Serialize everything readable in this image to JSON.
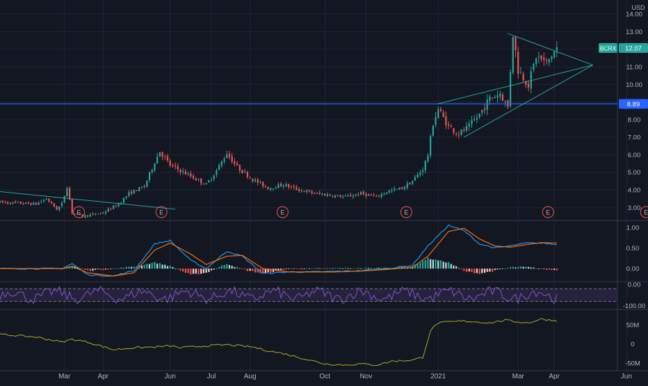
{
  "symbol": "BCRX",
  "last_price_label": "12.07",
  "hline_label": "8.89",
  "currency": "USD",
  "colors": {
    "background": "#131722",
    "grid": "#1f2433",
    "text": "#b2b5be",
    "up": "#26a69a",
    "down": "#ef5350",
    "trend": "#26a69a",
    "hline": "#2962ff",
    "macd": "#2196f3",
    "signal": "#ff6d00",
    "rsi": "#7e57c2",
    "vol_osc": "#9e9d24",
    "earnings": "#ef5350"
  },
  "earnings_marker": "E",
  "chart_data": [
    {
      "type": "candlestick",
      "panel": "price",
      "x_ticks": [
        "Mar",
        "Apr",
        "Jun",
        "Jul",
        "Aug",
        "Oct",
        "Nov",
        "2021",
        "Mar",
        "Apr",
        "Jun"
      ],
      "y_ticks": [
        "3.00",
        "4.00",
        "5.00",
        "6.00",
        "7.00",
        "8.00",
        "9.00",
        "10.00",
        "11.00",
        "12.00",
        "13.00",
        "14.00"
      ],
      "ylim": [
        2.3,
        14.8
      ],
      "price_path": [
        [
          0,
          3.3
        ],
        [
          14,
          3.2
        ],
        [
          18,
          3.5
        ],
        [
          22,
          2.9
        ],
        [
          24,
          3.2
        ],
        [
          26,
          4.2
        ],
        [
          28,
          2.7
        ],
        [
          32,
          2.5
        ],
        [
          40,
          2.7
        ],
        [
          46,
          3.2
        ],
        [
          50,
          3.8
        ],
        [
          56,
          4.2
        ],
        [
          60,
          5.6
        ],
        [
          62,
          6.2
        ],
        [
          66,
          5.4
        ],
        [
          70,
          5.1
        ],
        [
          75,
          4.7
        ],
        [
          80,
          4.3
        ],
        [
          84,
          5.1
        ],
        [
          88,
          6.1
        ],
        [
          92,
          5.3
        ],
        [
          98,
          4.6
        ],
        [
          104,
          4.1
        ],
        [
          110,
          4.3
        ],
        [
          116,
          4.0
        ],
        [
          122,
          3.8
        ],
        [
          128,
          3.7
        ],
        [
          134,
          3.6
        ],
        [
          140,
          3.8
        ],
        [
          146,
          3.6
        ],
        [
          150,
          3.9
        ],
        [
          156,
          4.1
        ],
        [
          160,
          4.5
        ],
        [
          164,
          5.2
        ],
        [
          166,
          6.0
        ],
        [
          168,
          7.8
        ],
        [
          170,
          8.6
        ],
        [
          174,
          7.6
        ],
        [
          178,
          7.2
        ],
        [
          182,
          7.6
        ],
        [
          186,
          8.3
        ],
        [
          190,
          9.2
        ],
        [
          194,
          9.5
        ],
        [
          197,
          8.7
        ],
        [
          199,
          12.9
        ],
        [
          201,
          10.8
        ],
        [
          205,
          10.0
        ],
        [
          208,
          11.6
        ],
        [
          212,
          11.2
        ],
        [
          216,
          12.07
        ]
      ],
      "series_count": 217,
      "lines": [
        {
          "name": "8.89",
          "type": "horizontal",
          "value": 8.89
        }
      ],
      "trendlines": [
        {
          "from": [
            0,
            3.9
          ],
          "to": [
            68,
            2.9
          ]
        },
        {
          "from": [
            170,
            8.9
          ],
          "to": [
            230,
            11.1
          ]
        },
        {
          "from": [
            180,
            7.0
          ],
          "to": [
            230,
            11.1
          ]
        },
        {
          "from": [
            197,
            12.9
          ],
          "to": [
            230,
            11.1
          ]
        }
      ],
      "earnings_events": [
        29,
        61,
        108,
        156,
        211,
        249
      ]
    },
    {
      "type": "line",
      "panel": "macd",
      "y_ticks": [
        "0.00",
        "0.50",
        "1.00"
      ],
      "ylim": [
        -0.3,
        1.15
      ],
      "macd_path": [
        [
          0,
          0.0
        ],
        [
          24,
          0.0
        ],
        [
          28,
          0.12
        ],
        [
          34,
          -0.15
        ],
        [
          44,
          -0.18
        ],
        [
          52,
          -0.05
        ],
        [
          60,
          0.6
        ],
        [
          66,
          0.68
        ],
        [
          74,
          0.2
        ],
        [
          80,
          0.0
        ],
        [
          88,
          0.42
        ],
        [
          94,
          0.3
        ],
        [
          102,
          -0.12
        ],
        [
          112,
          -0.08
        ],
        [
          122,
          -0.08
        ],
        [
          130,
          -0.07
        ],
        [
          140,
          -0.05
        ],
        [
          150,
          0.0
        ],
        [
          160,
          0.08
        ],
        [
          166,
          0.55
        ],
        [
          174,
          1.05
        ],
        [
          180,
          0.92
        ],
        [
          186,
          0.6
        ],
        [
          192,
          0.5
        ],
        [
          198,
          0.55
        ],
        [
          204,
          0.62
        ],
        [
          210,
          0.62
        ],
        [
          216,
          0.58
        ]
      ],
      "signal_path": [
        [
          0,
          0.0
        ],
        [
          24,
          0.0
        ],
        [
          28,
          0.05
        ],
        [
          34,
          -0.1
        ],
        [
          44,
          -0.18
        ],
        [
          52,
          -0.1
        ],
        [
          60,
          0.45
        ],
        [
          66,
          0.62
        ],
        [
          74,
          0.35
        ],
        [
          80,
          0.1
        ],
        [
          88,
          0.3
        ],
        [
          94,
          0.32
        ],
        [
          102,
          0.0
        ],
        [
          112,
          -0.08
        ],
        [
          122,
          -0.08
        ],
        [
          130,
          -0.08
        ],
        [
          140,
          -0.06
        ],
        [
          150,
          -0.02
        ],
        [
          160,
          0.03
        ],
        [
          166,
          0.3
        ],
        [
          174,
          0.9
        ],
        [
          180,
          0.98
        ],
        [
          186,
          0.72
        ],
        [
          192,
          0.55
        ],
        [
          198,
          0.52
        ],
        [
          204,
          0.58
        ],
        [
          210,
          0.63
        ],
        [
          216,
          0.62
        ]
      ]
    },
    {
      "type": "line",
      "panel": "rsi",
      "y_ticks": [
        "0.00",
        "-100.00"
      ],
      "ylim": [
        -115,
        10
      ],
      "band": [
        -20,
        -80
      ]
    },
    {
      "type": "line",
      "panel": "volume_osc",
      "y_ticks": [
        "50M",
        "0",
        "-50M"
      ],
      "ylim": [
        -68,
        88
      ],
      "path": [
        [
          0,
          25
        ],
        [
          14,
          18
        ],
        [
          24,
          5
        ],
        [
          28,
          12
        ],
        [
          34,
          5
        ],
        [
          44,
          -15
        ],
        [
          52,
          -10
        ],
        [
          60,
          -8
        ],
        [
          66,
          -5
        ],
        [
          70,
          -10
        ],
        [
          80,
          -5
        ],
        [
          88,
          -2
        ],
        [
          98,
          -8
        ],
        [
          104,
          -18
        ],
        [
          110,
          -25
        ],
        [
          120,
          -42
        ],
        [
          126,
          -52
        ],
        [
          134,
          -55
        ],
        [
          140,
          -52
        ],
        [
          146,
          -55
        ],
        [
          152,
          -45
        ],
        [
          160,
          -42
        ],
        [
          164,
          -35
        ],
        [
          167,
          35
        ],
        [
          170,
          55
        ],
        [
          180,
          60
        ],
        [
          190,
          55
        ],
        [
          196,
          62
        ],
        [
          200,
          58
        ],
        [
          205,
          55
        ],
        [
          210,
          65
        ],
        [
          216,
          60
        ]
      ]
    }
  ]
}
